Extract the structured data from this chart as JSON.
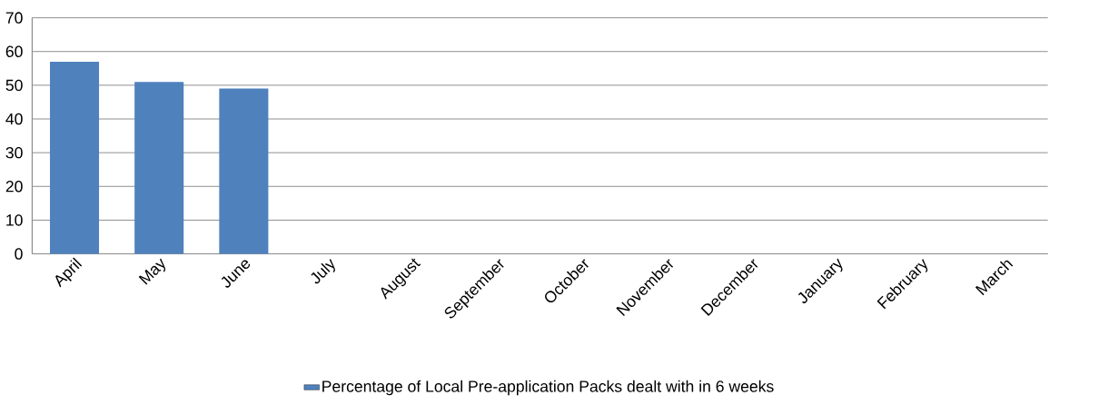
{
  "chart_data": {
    "type": "bar",
    "categories": [
      "April",
      "May",
      "June",
      "July",
      "August",
      "September",
      "October",
      "November",
      "December",
      "January",
      "February",
      "March"
    ],
    "series": [
      {
        "name": "Percentage of Local Pre-application Packs dealt with in 6 weeks",
        "color": "#4f81bd",
        "values": [
          57,
          51,
          49,
          null,
          null,
          null,
          null,
          null,
          null,
          null,
          null,
          null
        ]
      }
    ],
    "ylim": [
      0,
      70
    ],
    "yticks": [
      0,
      10,
      20,
      30,
      40,
      50,
      60,
      70
    ],
    "grid": "y",
    "legend": "bottom"
  }
}
